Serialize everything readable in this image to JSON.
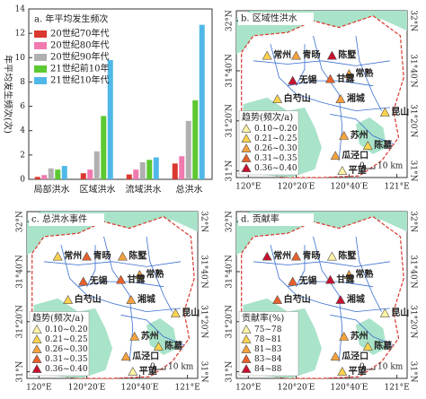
{
  "chart_data": {
    "type": "bar",
    "title": "a. 年平均发生频次",
    "ylabel": "年平均发生频次(次)",
    "categories": [
      "局部洪水",
      "区域洪水",
      "流域洪水",
      "总洪水"
    ],
    "series": [
      {
        "name": "20世纪70年代",
        "color": "#d9382e",
        "values": [
          0.2,
          0.5,
          0.4,
          1.3
        ]
      },
      {
        "name": "20世纪80年代",
        "color": "#f07ab0",
        "values": [
          0.35,
          0.8,
          0.8,
          1.9
        ]
      },
      {
        "name": "20世纪90年代",
        "color": "#b0b0b0",
        "values": [
          0.9,
          2.3,
          1.4,
          4.8
        ]
      },
      {
        "name": "21世纪前10年",
        "color": "#5cc832",
        "values": [
          0.8,
          5.2,
          1.6,
          6.5
        ]
      },
      {
        "name": "21世纪10年代",
        "color": "#4fb8e8",
        "values": [
          1.1,
          9.8,
          1.8,
          12.7
        ]
      }
    ],
    "ylim": [
      0,
      14
    ],
    "yticks": [
      0,
      2,
      4,
      6,
      8,
      10,
      12,
      14
    ],
    "legend": "upper left"
  },
  "map_axes": {
    "lon_labels": [
      "120°E",
      "120°20′E",
      "120°40′E",
      "121°E"
    ],
    "lat_labels": [
      "32°N",
      "31°40′N",
      "31°20′N",
      "31°N"
    ],
    "scale_labels": [
      "0",
      "10 km"
    ]
  },
  "maps": [
    {
      "title": "b. 区域性洪水",
      "legend_title": "趋势(频次/a)",
      "legend": [
        {
          "label": "0.10~0.20",
          "color": "#fff3a6"
        },
        {
          "label": "0.21~0.25",
          "color": "#ffd24d"
        },
        {
          "label": "0.26~0.30",
          "color": "#f7a33c"
        },
        {
          "label": "0.31~0.35",
          "color": "#e8602a"
        },
        {
          "label": "0.36~0.40",
          "color": "#c8102e"
        }
      ],
      "stations": [
        {
          "name": "常州",
          "color": "#ffd24d"
        },
        {
          "name": "青旸",
          "color": "#f7a33c"
        },
        {
          "name": "陈墅",
          "color": "#c8102e"
        },
        {
          "name": "常熟",
          "color": "#f7a33c"
        },
        {
          "name": "无锡",
          "color": "#c8102e"
        },
        {
          "name": "甘露",
          "color": "#e8602a"
        },
        {
          "name": "湘城",
          "color": "#f7a33c"
        },
        {
          "name": "白芍山",
          "color": "#ffd24d"
        },
        {
          "name": "昆山",
          "color": "#ffd24d"
        },
        {
          "name": "苏州",
          "color": "#f7a33c"
        },
        {
          "name": "陈墓",
          "color": "#ffd24d"
        },
        {
          "name": "瓜泾口",
          "color": "#f7a33c"
        },
        {
          "name": "平望",
          "color": "#fff3a6"
        }
      ]
    },
    {
      "title": "c. 总洪水事件",
      "legend_title": "趋势(频次/a)",
      "legend": [
        {
          "label": "0.10~0.20",
          "color": "#fff3a6"
        },
        {
          "label": "0.21~0.25",
          "color": "#ffd24d"
        },
        {
          "label": "0.26~0.30",
          "color": "#f7a33c"
        },
        {
          "label": "0.31~0.35",
          "color": "#e8602a"
        },
        {
          "label": "0.36~0.40",
          "color": "#c8102e"
        }
      ],
      "stations": [
        {
          "name": "常州",
          "color": "#ffd24d"
        },
        {
          "name": "青旸",
          "color": "#e8602a"
        },
        {
          "name": "陈墅",
          "color": "#f7a33c"
        },
        {
          "name": "常熟",
          "color": "#f7a33c"
        },
        {
          "name": "无锡",
          "color": "#e8602a"
        },
        {
          "name": "甘露",
          "color": "#e8602a"
        },
        {
          "name": "湘城",
          "color": "#f7a33c"
        },
        {
          "name": "白芍山",
          "color": "#ffd24d"
        },
        {
          "name": "昆山",
          "color": "#ffd24d"
        },
        {
          "name": "苏州",
          "color": "#f7a33c"
        },
        {
          "name": "陈墓",
          "color": "#ffd24d"
        },
        {
          "name": "瓜泾口",
          "color": "#f7a33c"
        },
        {
          "name": "平望",
          "color": "#fff3a6"
        }
      ]
    },
    {
      "title": "d. 贡献率",
      "legend_title": "贡献率(%)",
      "legend": [
        {
          "label": "75~78",
          "color": "#fff3a6"
        },
        {
          "label": "78~81",
          "color": "#ffd24d"
        },
        {
          "label": "81~83",
          "color": "#f7a33c"
        },
        {
          "label": "83~84",
          "color": "#e8602a"
        },
        {
          "label": "84~88",
          "color": "#c8102e"
        }
      ],
      "stations": [
        {
          "name": "常州",
          "color": "#c8102e"
        },
        {
          "name": "青旸",
          "color": "#e8602a"
        },
        {
          "name": "陈墅",
          "color": "#fff3a6"
        },
        {
          "name": "常熟",
          "color": "#f7a33c"
        },
        {
          "name": "无锡",
          "color": "#e8602a"
        },
        {
          "name": "甘露",
          "color": "#c8102e"
        },
        {
          "name": "湘城",
          "color": "#c8102e"
        },
        {
          "name": "白芍山",
          "color": "#e8602a"
        },
        {
          "name": "昆山",
          "color": "#fff3a6"
        },
        {
          "name": "苏州",
          "color": "#f7a33c"
        },
        {
          "name": "陈墓",
          "color": "#ffd24d"
        },
        {
          "name": "瓜泾口",
          "color": "#f7a33c"
        },
        {
          "name": "平望",
          "color": "#ffd24d"
        }
      ]
    }
  ]
}
